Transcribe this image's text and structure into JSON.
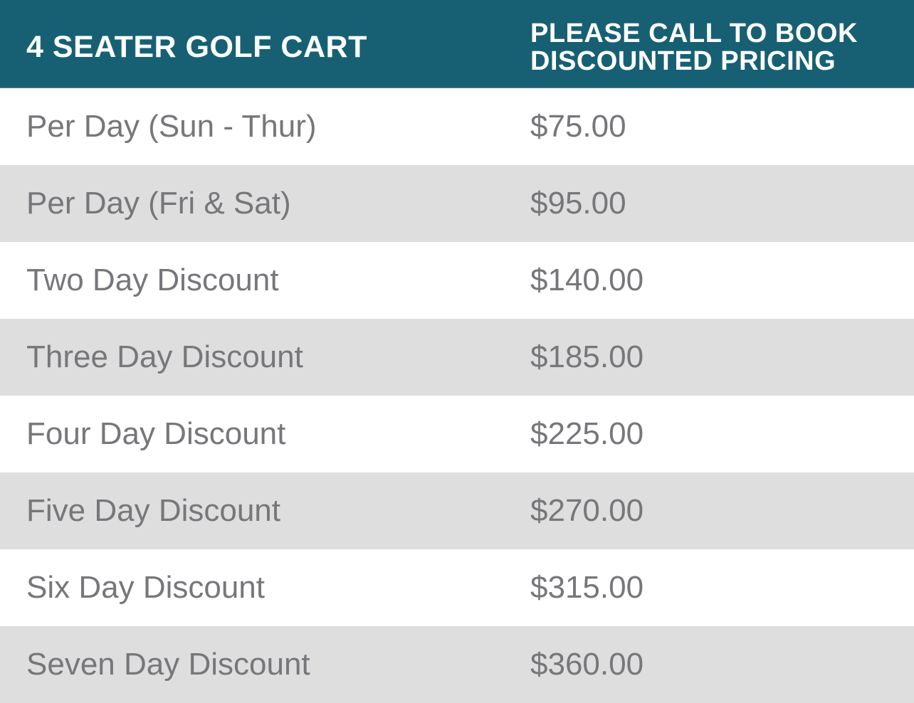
{
  "header": {
    "title": "4 SEATER GOLF CART",
    "note_line1": "PLEASE CALL TO BOOK",
    "note_line2": "DISCOUNTED PRICING"
  },
  "colors": {
    "header_bg": "#176074",
    "alt_row_bg": "#dedede",
    "text": "#77777b"
  },
  "rows": [
    {
      "label": "Per Day (Sun - Thur)",
      "price": "$75.00"
    },
    {
      "label": "Per Day (Fri & Sat)",
      "price": "$95.00"
    },
    {
      "label": "Two Day Discount",
      "price": "$140.00"
    },
    {
      "label": "Three Day Discount",
      "price": "$185.00"
    },
    {
      "label": "Four Day Discount",
      "price": "$225.00"
    },
    {
      "label": "Five Day Discount",
      "price": "$270.00"
    },
    {
      "label": "Six Day Discount",
      "price": "$315.00"
    },
    {
      "label": "Seven Day Discount",
      "price": "$360.00"
    }
  ]
}
